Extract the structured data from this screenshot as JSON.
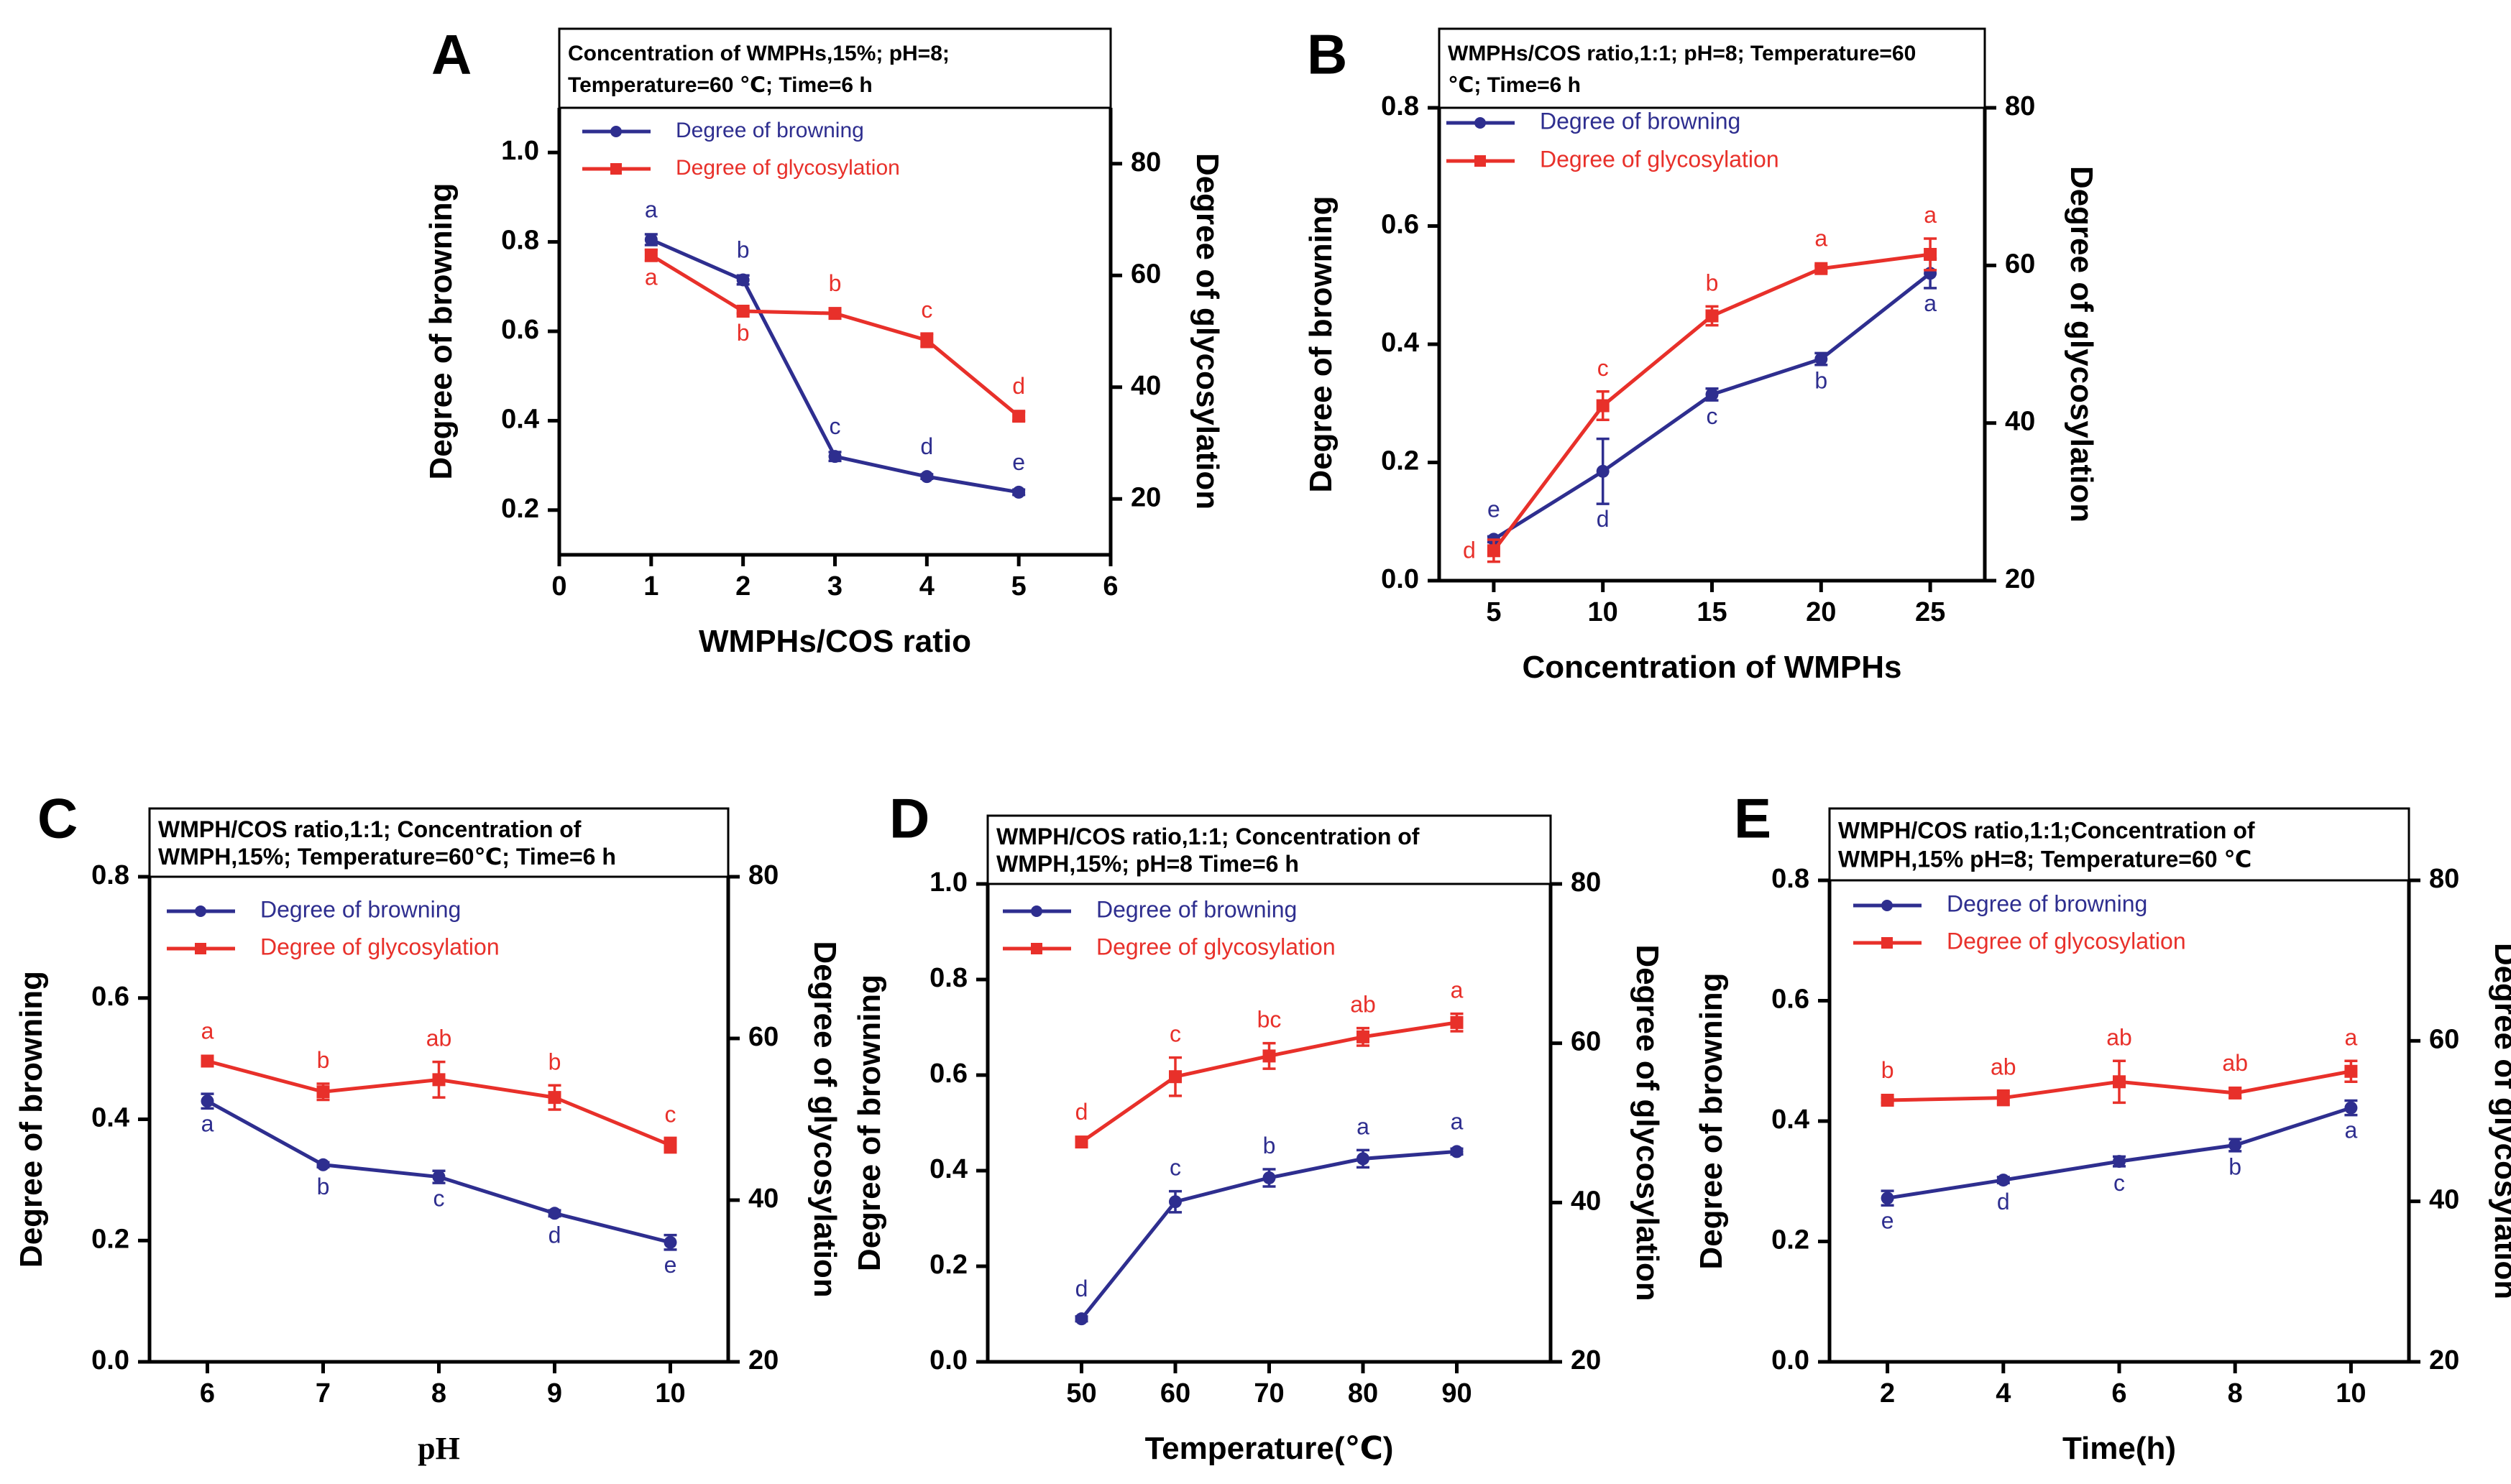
{
  "colors": {
    "browning": "#2e2e8f",
    "glycosylation": "#e8302a",
    "axis": "#000000"
  },
  "chart_data": [
    {
      "id": "A",
      "panel_label": "A",
      "type": "line",
      "conditions": [
        "Concentration of WMPHs,15%; pH=8;",
        "Temperature=60 ℃; Time=6 h"
      ],
      "xlabel": "WMPHs/COS ratio",
      "ylabel_left": "Degree of browning",
      "ylabel_right": "Degree of glycosylation",
      "xlim": [
        0,
        6
      ],
      "x_ticks": [
        0,
        1,
        2,
        3,
        4,
        5,
        6
      ],
      "x_tick_labels": [
        "0",
        "1",
        "2",
        "3",
        "4",
        "5",
        "6"
      ],
      "ylim_left": [
        0.1,
        1.1
      ],
      "y_left_ticks": [
        0.2,
        0.4,
        0.6,
        0.8,
        1.0
      ],
      "y_left_tick_labels": [
        "0.2",
        "0.4",
        "0.6",
        "0.8",
        "1.0"
      ],
      "ylim_right": [
        10,
        90
      ],
      "y_right_ticks": [
        20,
        40,
        60,
        80
      ],
      "y_right_tick_labels": [
        "20",
        "40",
        "60",
        "80"
      ],
      "series": [
        {
          "name": "Degree of browning",
          "axis": "left",
          "x": [
            1,
            2,
            3,
            4,
            5
          ],
          "values": [
            0.805,
            0.715,
            0.32,
            0.275,
            0.24
          ],
          "errors": [
            0.012,
            0.01,
            0.01,
            0.005,
            0.006
          ],
          "letters": [
            "a",
            "b",
            "c",
            "d",
            "e"
          ],
          "letter_pos": [
            "above",
            "above",
            "above",
            "above",
            "above"
          ]
        },
        {
          "name": "Degree of glycosylation",
          "axis": "right",
          "x": [
            1,
            2,
            3,
            4,
            5
          ],
          "values": [
            63.6,
            53.6,
            53.2,
            48.4,
            34.8
          ],
          "errors": [
            1.0,
            0.4,
            0.4,
            1.2,
            0.8
          ],
          "letters": [
            "a",
            "b",
            "b",
            "c",
            "d"
          ],
          "letter_pos": [
            "below",
            "below",
            "above",
            "above",
            "above"
          ]
        }
      ]
    },
    {
      "id": "B",
      "panel_label": "B",
      "type": "line",
      "conditions": [
        "WMPHs/COS ratio,1:1; pH=8; Temperature=60",
        "℃; Time=6 h"
      ],
      "xlabel": "Concentration of WMPHs",
      "ylabel_left": "Degree of browning",
      "ylabel_right": "Degree of glycosylation",
      "xlim": [
        2.5,
        27.5
      ],
      "x_ticks": [
        5,
        10,
        15,
        20,
        25
      ],
      "x_tick_labels": [
        "5",
        "10",
        "15",
        "20",
        "25"
      ],
      "ylim_left": [
        0,
        0.8
      ],
      "y_left_ticks": [
        0,
        0.2,
        0.4,
        0.6,
        0.8
      ],
      "y_left_tick_labels": [
        "0.0",
        "0.2",
        "0.4",
        "0.6",
        "0.8"
      ],
      "ylim_right": [
        20,
        80
      ],
      "y_right_ticks": [
        20,
        40,
        60,
        80
      ],
      "y_right_tick_labels": [
        "20",
        "40",
        "60",
        "80"
      ],
      "series": [
        {
          "name": "Degree of browning",
          "axis": "left",
          "x": [
            5,
            10,
            15,
            20,
            25
          ],
          "values": [
            0.07,
            0.185,
            0.315,
            0.375,
            0.52
          ],
          "errors": [
            0.005,
            0.055,
            0.01,
            0.01,
            0.025
          ],
          "letters": [
            "e",
            "d",
            "c",
            "b",
            "a"
          ],
          "letter_pos": [
            "above",
            "below",
            "below",
            "below",
            "below"
          ]
        },
        {
          "name": "Degree of glycosylation",
          "axis": "right",
          "x": [
            5,
            10,
            15,
            20,
            25
          ],
          "values": [
            23.8,
            42.2,
            53.6,
            59.6,
            61.4
          ],
          "errors": [
            1.4,
            1.8,
            1.2,
            0.4,
            2.0
          ],
          "letters": [
            "d",
            "c",
            "b",
            "a",
            "a"
          ],
          "letter_pos": [
            "left",
            "above",
            "above",
            "above",
            "above"
          ]
        }
      ]
    },
    {
      "id": "C",
      "panel_label": "C",
      "type": "line",
      "conditions": [
        "WMPH/COS ratio,1:1; Concentration of",
        "WMPH,15%; Temperature=60℃;  Time=6 h"
      ],
      "xlabel": "pH",
      "xlabel_serif": true,
      "ylabel_left": "Degree of browning",
      "ylabel_right": "Degree of glycosylation",
      "xlim": [
        5.5,
        10.5
      ],
      "x_ticks": [
        6,
        7,
        8,
        9,
        10
      ],
      "x_tick_labels": [
        "6",
        "7",
        "8",
        "9",
        "10"
      ],
      "ylim_left": [
        0,
        0.8
      ],
      "y_left_ticks": [
        0,
        0.2,
        0.4,
        0.6,
        0.8
      ],
      "y_left_tick_labels": [
        "0.0",
        "0.2",
        "0.4",
        "0.6",
        "0.8"
      ],
      "ylim_right": [
        20,
        80
      ],
      "y_right_ticks": [
        20,
        40,
        60,
        80
      ],
      "y_right_tick_labels": [
        "20",
        "40",
        "60",
        "80"
      ],
      "series": [
        {
          "name": "Degree of browning",
          "axis": "left",
          "x": [
            6,
            7,
            8,
            9,
            10
          ],
          "values": [
            0.43,
            0.325,
            0.305,
            0.245,
            0.197
          ],
          "errors": [
            0.012,
            0.004,
            0.01,
            0.005,
            0.012
          ],
          "letters": [
            "a",
            "b",
            "c",
            "d",
            "e"
          ],
          "letter_pos": [
            "below",
            "below",
            "below",
            "below",
            "below"
          ]
        },
        {
          "name": "Degree of glycosylation",
          "axis": "right",
          "x": [
            6,
            7,
            8,
            9,
            10
          ],
          "values": [
            57.2,
            53.4,
            54.9,
            52.7,
            46.8
          ],
          "errors": [
            0.5,
            1.0,
            2.2,
            1.5,
            0.9
          ],
          "letters": [
            "a",
            "b",
            "ab",
            "b",
            "c"
          ],
          "letter_pos": [
            "above",
            "above",
            "above",
            "above",
            "above"
          ]
        }
      ]
    },
    {
      "id": "D",
      "panel_label": "D",
      "type": "line",
      "conditions": [
        "WMPH/COS ratio,1:1; Concentration of",
        "WMPH,15%; pH=8 Time=6 h"
      ],
      "xlabel": "Temperature(℃)",
      "ylabel_left": "Degree of browning",
      "ylabel_right": "Degree of glycosylation",
      "xlim": [
        40,
        100
      ],
      "x_ticks": [
        50,
        60,
        70,
        80,
        90
      ],
      "x_tick_labels": [
        "50",
        "60",
        "70",
        "80",
        "90"
      ],
      "ylim_left": [
        0,
        1.0
      ],
      "y_left_ticks": [
        0,
        0.2,
        0.4,
        0.6,
        0.8,
        1.0
      ],
      "y_left_tick_labels": [
        "0.0",
        "0.2",
        "0.4",
        "0.6",
        "0.8",
        "1.0"
      ],
      "ylim_right": [
        20,
        80
      ],
      "y_right_ticks": [
        20,
        40,
        60,
        80
      ],
      "y_right_tick_labels": [
        "20",
        "40",
        "60",
        "80"
      ],
      "series": [
        {
          "name": "Degree of browning",
          "axis": "left",
          "x": [
            50,
            60,
            70,
            80,
            90
          ],
          "values": [
            0.09,
            0.335,
            0.385,
            0.425,
            0.44
          ],
          "errors": [
            0.005,
            0.022,
            0.018,
            0.018,
            0.006
          ],
          "letters": [
            "d",
            "c",
            "b",
            "a",
            "a"
          ],
          "letter_pos": [
            "above",
            "above",
            "above",
            "above",
            "above"
          ]
        },
        {
          "name": "Degree of glycosylation",
          "axis": "right",
          "x": [
            50,
            60,
            70,
            80,
            90
          ],
          "values": [
            47.6,
            55.8,
            58.4,
            60.8,
            62.6
          ],
          "errors": [
            0.5,
            2.4,
            1.6,
            1.1,
            1.1
          ],
          "letters": [
            "d",
            "c",
            "bc",
            "ab",
            "a"
          ],
          "letter_pos": [
            "above",
            "above",
            "above",
            "above",
            "above"
          ]
        }
      ]
    },
    {
      "id": "E",
      "panel_label": "E",
      "type": "line",
      "conditions": [
        "WMPH/COS ratio,1:1;Concentration of",
        "WMPH,15% pH=8; Temperature=60 ℃"
      ],
      "xlabel": "Time(h)",
      "ylabel_left": "Degree of browning",
      "ylabel_right": "Degree of glycosylation",
      "xlim": [
        1,
        11
      ],
      "x_ticks": [
        2,
        4,
        6,
        8,
        10
      ],
      "x_tick_labels": [
        "2",
        "4",
        "6",
        "8",
        "10"
      ],
      "ylim_left": [
        0,
        0.8
      ],
      "y_left_ticks": [
        0,
        0.2,
        0.4,
        0.6,
        0.8
      ],
      "y_left_tick_labels": [
        "0.0",
        "0.2",
        "0.4",
        "0.6",
        "0.8"
      ],
      "ylim_right": [
        20,
        80
      ],
      "y_right_ticks": [
        20,
        40,
        60,
        80
      ],
      "y_right_tick_labels": [
        "20",
        "40",
        "60",
        "80"
      ],
      "series": [
        {
          "name": "Degree of browning",
          "axis": "left",
          "x": [
            2,
            4,
            6,
            8,
            10
          ],
          "values": [
            0.272,
            0.302,
            0.333,
            0.36,
            0.422
          ],
          "errors": [
            0.012,
            0.005,
            0.008,
            0.01,
            0.012
          ],
          "letters": [
            "e",
            "d",
            "c",
            "b",
            "a"
          ],
          "letter_pos": [
            "below",
            "below",
            "below",
            "below",
            "below"
          ]
        },
        {
          "name": "Degree of glycosylation",
          "axis": "right",
          "x": [
            2,
            4,
            6,
            8,
            10
          ],
          "values": [
            52.6,
            52.9,
            54.9,
            53.5,
            56.2
          ],
          "errors": [
            0.3,
            0.9,
            2.6,
            0.6,
            1.3
          ],
          "letters": [
            "b",
            "ab",
            "ab",
            "ab",
            "a"
          ],
          "letter_pos": [
            "above",
            "above",
            "above",
            "above",
            "above"
          ]
        }
      ]
    }
  ]
}
